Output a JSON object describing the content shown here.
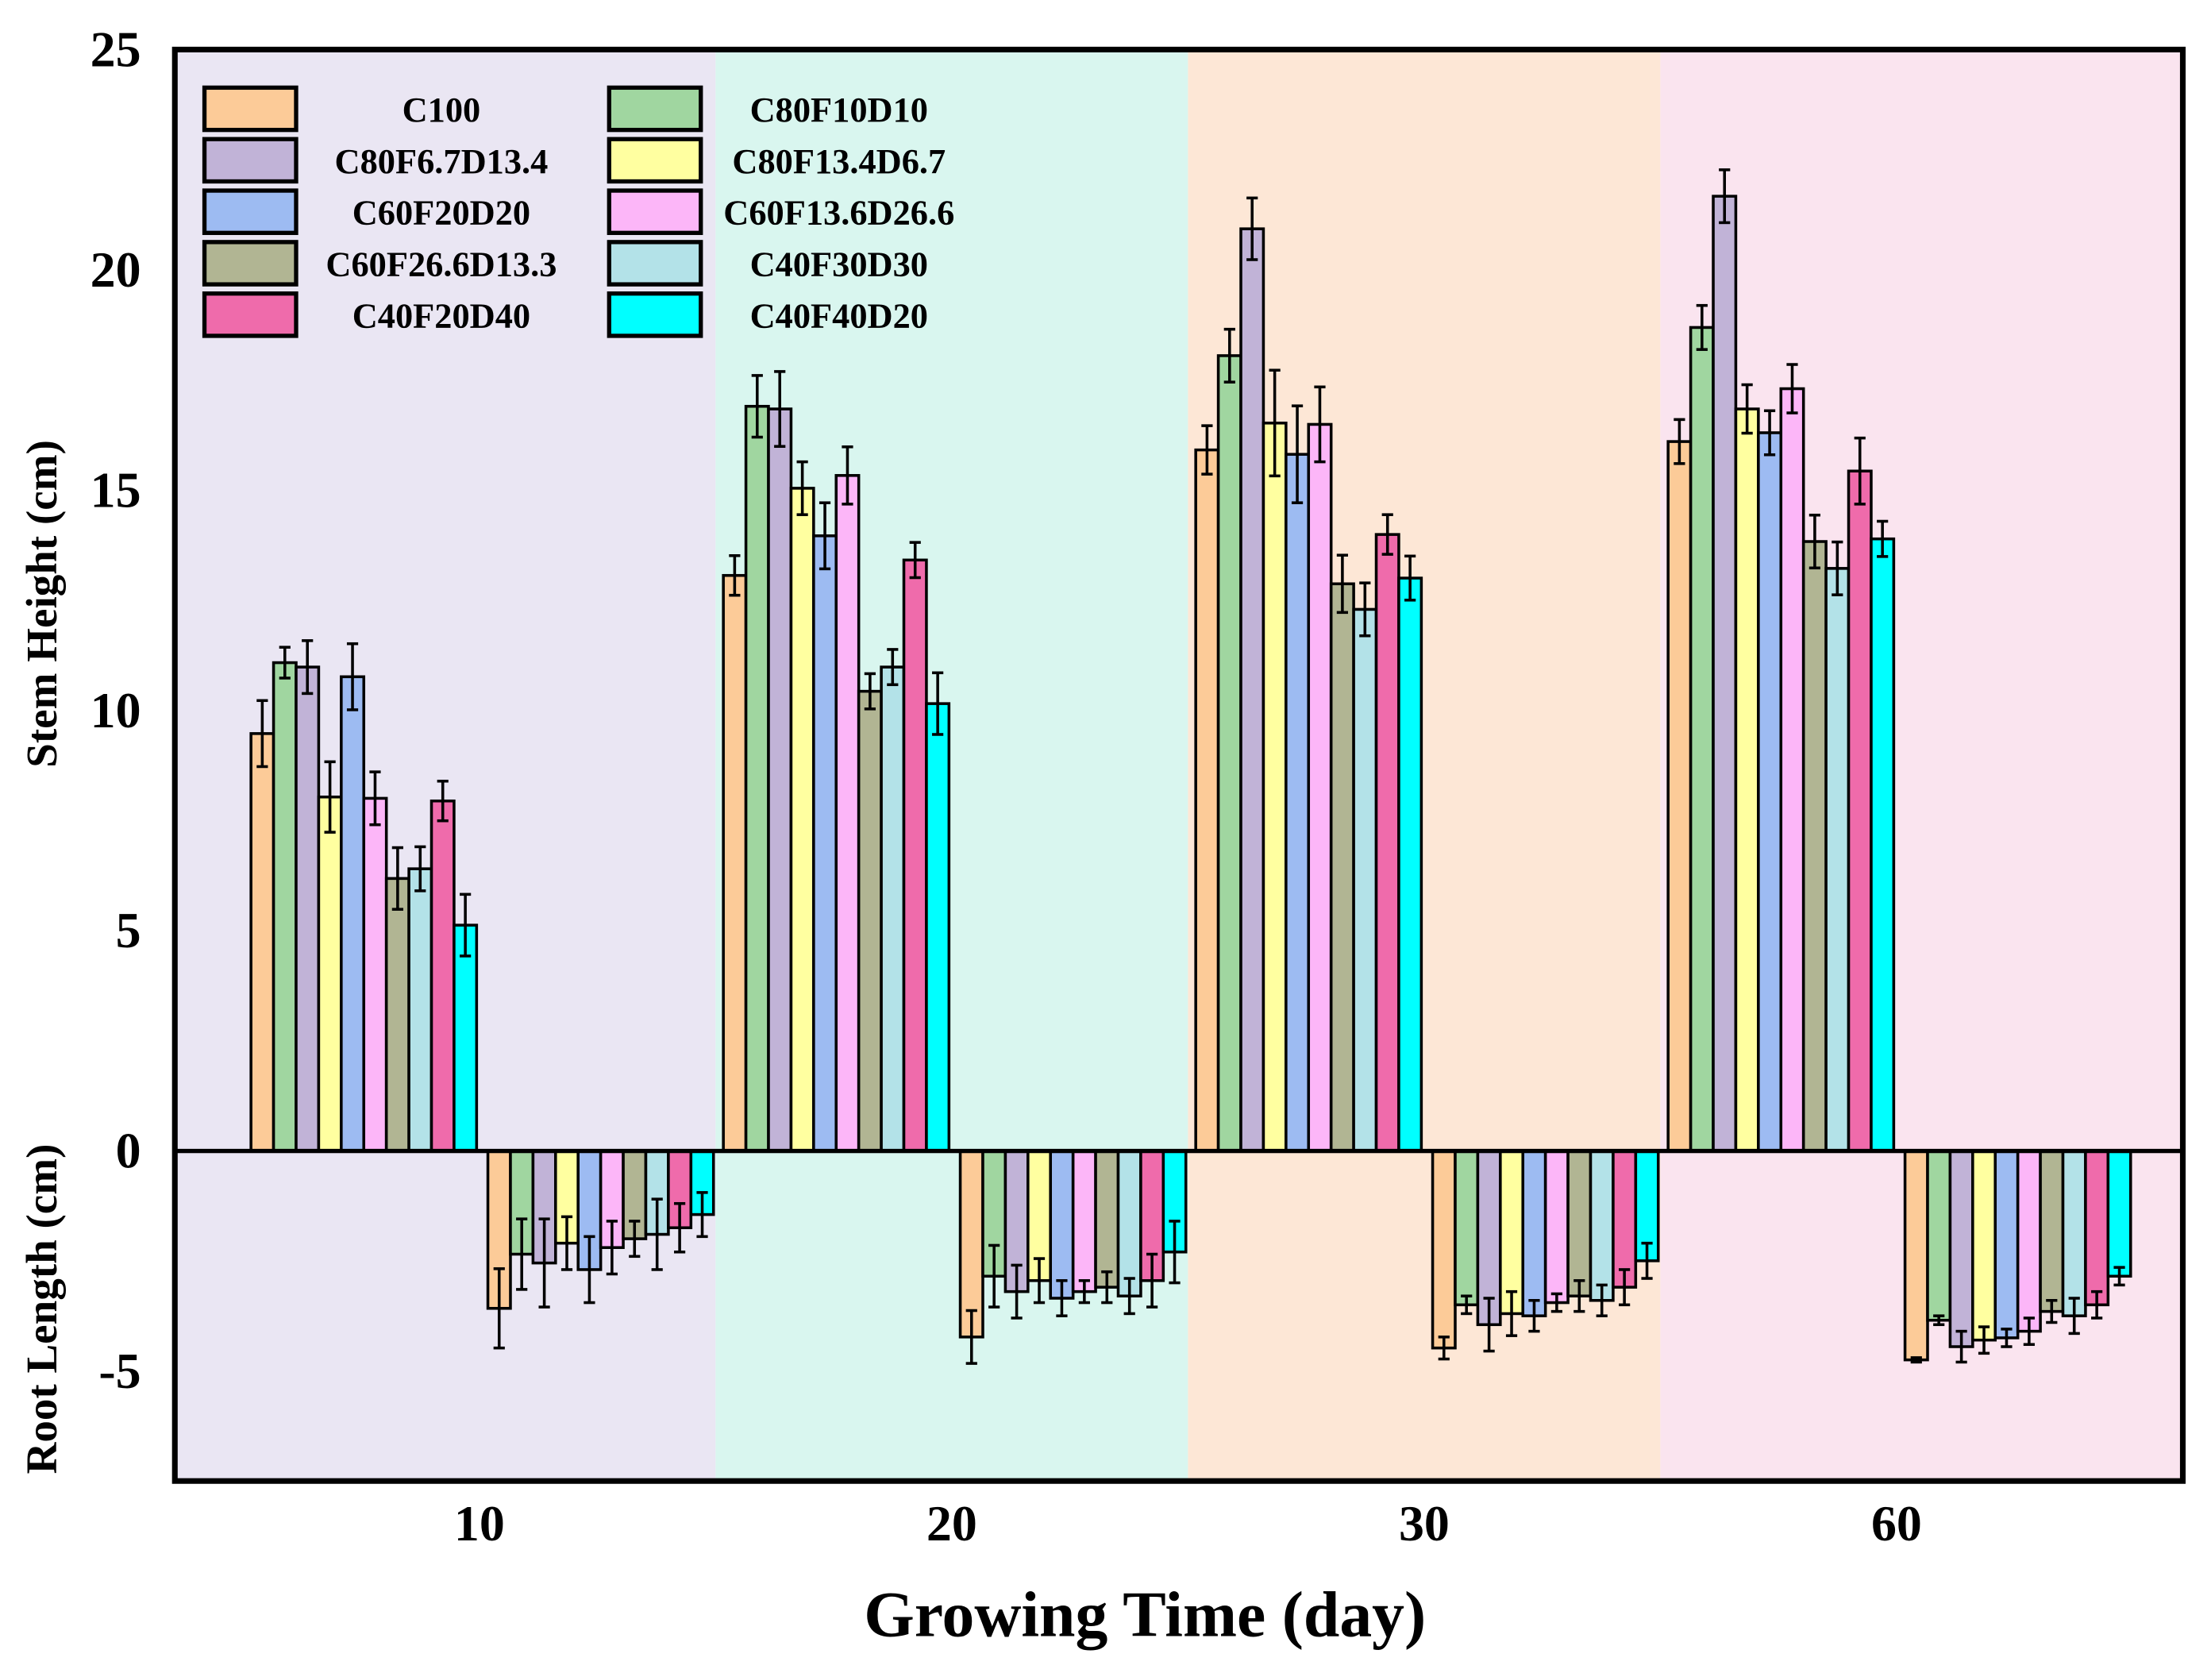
{
  "chart_data": {
    "type": "bar",
    "xlabel": "Growing Time (day)",
    "ylabel_top": "Stem Height (cm)",
    "ylabel_bottom": "Root Length (cm)",
    "ylim": [
      -7.5,
      25
    ],
    "yticks": [
      25,
      20,
      15,
      10,
      5,
      0,
      -5
    ],
    "categories": [
      "10",
      "20",
      "30",
      "60"
    ],
    "region_colors": [
      "#EAE6F3",
      "#D9F6EF",
      "#FDE7D6",
      "#FAE4EF"
    ],
    "legend_placement": "top-left",
    "series": [
      {
        "name": "C100",
        "color": "#FCCB98",
        "stem": [
          9.47,
          13.06,
          15.91,
          16.1
        ],
        "stem_err": [
          0.75,
          0.45,
          0.55,
          0.5
        ],
        "root": [
          -3.58,
          -4.23,
          -4.48,
          -4.75
        ],
        "root_err": [
          0.9,
          0.6,
          0.25,
          0.05
        ]
      },
      {
        "name": "C80F10D10",
        "color": "#A0D6A0",
        "stem": [
          11.08,
          16.9,
          18.05,
          18.69
        ],
        "stem_err": [
          0.35,
          0.7,
          0.6,
          0.5
        ],
        "root": [
          -2.35,
          -2.85,
          -3.5,
          -3.85
        ],
        "root_err": [
          0.8,
          0.7,
          0.2,
          0.1
        ]
      },
      {
        "name": "C80F6.7D13.4",
        "color": "#C1B3D7",
        "stem": [
          10.98,
          16.84,
          20.93,
          21.67
        ],
        "stem_err": [
          0.6,
          0.85,
          0.7,
          0.6
        ],
        "root": [
          -2.55,
          -3.2,
          -3.95,
          -4.45
        ],
        "root_err": [
          1.0,
          0.6,
          0.6,
          0.35
        ]
      },
      {
        "name": "C80F13.4D6.7",
        "color": "#FFFFA0",
        "stem": [
          8.03,
          15.04,
          16.52,
          16.84
        ],
        "stem_err": [
          0.8,
          0.6,
          1.2,
          0.55
        ],
        "root": [
          -2.1,
          -2.95,
          -3.7,
          -4.3
        ],
        "root_err": [
          0.6,
          0.5,
          0.5,
          0.3
        ]
      },
      {
        "name": "C60F20D20",
        "color": "#9DBBF2",
        "stem": [
          10.76,
          13.96,
          15.81,
          16.3
        ],
        "stem_err": [
          0.75,
          0.75,
          1.1,
          0.5
        ],
        "root": [
          -2.7,
          -3.35,
          -3.75,
          -4.25
        ],
        "root_err": [
          0.75,
          0.4,
          0.35,
          0.2
        ]
      },
      {
        "name": "C60F13.6D26.6",
        "color": "#FCB6F8",
        "stem": [
          8.0,
          15.33,
          16.49,
          17.3
        ],
        "stem_err": [
          0.6,
          0.65,
          0.85,
          0.55
        ],
        "root": [
          -2.2,
          -3.2,
          -3.45,
          -4.1
        ],
        "root_err": [
          0.6,
          0.25,
          0.2,
          0.3
        ]
      },
      {
        "name": "C60F26.6D13.3",
        "color": "#B1B593",
        "stem": [
          6.18,
          10.43,
          12.87,
          13.83
        ],
        "stem_err": [
          0.7,
          0.4,
          0.65,
          0.6
        ],
        "root": [
          -2.0,
          -3.1,
          -3.3,
          -3.65
        ],
        "root_err": [
          0.4,
          0.35,
          0.35,
          0.25
        ]
      },
      {
        "name": "C40F30D30",
        "color": "#B3E2E8",
        "stem": [
          6.4,
          10.98,
          12.29,
          13.22
        ],
        "stem_err": [
          0.5,
          0.4,
          0.6,
          0.6
        ],
        "root": [
          -1.9,
          -3.3,
          -3.4,
          -3.75
        ],
        "root_err": [
          0.8,
          0.4,
          0.35,
          0.4
        ]
      },
      {
        "name": "C40F20D40",
        "color": "#EF6BAB",
        "stem": [
          7.94,
          13.41,
          13.99,
          15.43
        ],
        "stem_err": [
          0.45,
          0.4,
          0.45,
          0.75
        ],
        "root": [
          -1.75,
          -2.95,
          -3.1,
          -3.5
        ],
        "root_err": [
          0.55,
          0.6,
          0.4,
          0.3
        ]
      },
      {
        "name": "C40F40D20",
        "color": "#00FFFF",
        "stem": [
          5.12,
          10.15,
          13.0,
          13.89
        ],
        "stem_err": [
          0.7,
          0.7,
          0.5,
          0.4
        ],
        "root": [
          -1.45,
          -2.3,
          -2.5,
          -2.85
        ],
        "root_err": [
          0.5,
          0.7,
          0.4,
          0.2
        ]
      }
    ]
  }
}
